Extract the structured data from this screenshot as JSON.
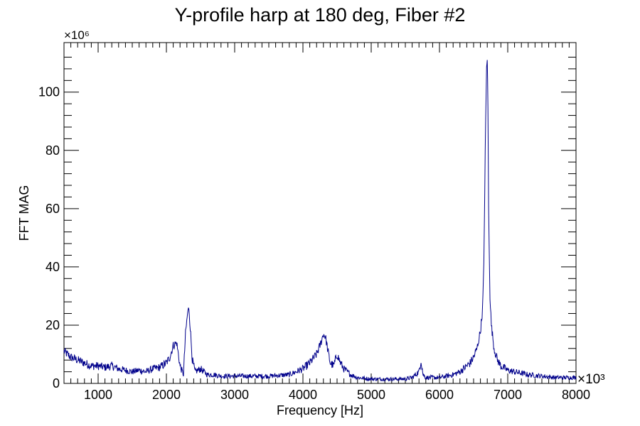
{
  "chart_data": {
    "type": "line",
    "title": "Y-profile harp at 180 deg, Fiber #2",
    "xlabel": "Frequency [Hz]",
    "ylabel": "FFT MAG",
    "x_multiplier_label": "×10³",
    "y_multiplier_label": "×10⁶",
    "xlim": [
      500,
      8000
    ],
    "ylim": [
      0,
      117
    ],
    "x_ticks": [
      1000,
      2000,
      3000,
      4000,
      5000,
      6000,
      7000,
      8000
    ],
    "x_tick_labels": [
      "1000",
      "2000",
      "3000",
      "4000",
      "5000",
      "6000",
      "7000",
      "8000"
    ],
    "y_ticks": [
      0,
      20,
      40,
      60,
      80,
      100
    ],
    "y_tick_labels": [
      "0",
      "20",
      "40",
      "60",
      "80",
      "100"
    ],
    "grid": false,
    "legend": "none",
    "series": [
      {
        "color": "#00008b",
        "x": [
          500,
          600,
          700,
          800,
          900,
          1000,
          1100,
          1200,
          1300,
          1400,
          1500,
          1600,
          1700,
          1800,
          1900,
          2000,
          2050,
          2100,
          2150,
          2200,
          2250,
          2280,
          2310,
          2330,
          2350,
          2380,
          2420,
          2500,
          2600,
          2700,
          2800,
          3000,
          3200,
          3500,
          3800,
          4000,
          4100,
          4200,
          4250,
          4300,
          4330,
          4360,
          4400,
          4450,
          4500,
          4550,
          4600,
          4700,
          4800,
          5000,
          5200,
          5500,
          5600,
          5700,
          5730,
          5760,
          5800,
          6000,
          6200,
          6300,
          6400,
          6450,
          6500,
          6550,
          6600,
          6630,
          6650,
          6670,
          6690,
          6700,
          6710,
          6720,
          6740,
          6760,
          6800,
          6850,
          6900,
          7000,
          7100,
          7200,
          7300,
          7500,
          7700,
          8000
        ],
        "y": [
          11,
          9,
          8,
          7,
          6,
          6,
          5.5,
          6,
          5,
          4.5,
          4,
          4.5,
          4,
          5,
          5.5,
          7,
          9,
          13,
          14,
          6,
          3,
          17,
          24,
          26,
          19,
          8,
          4,
          5,
          3,
          3,
          2.5,
          2.5,
          2.5,
          2.5,
          3,
          5,
          7,
          10,
          13,
          17,
          16,
          12,
          7,
          6,
          10,
          7,
          5,
          3,
          2,
          1.5,
          1.5,
          1.5,
          2,
          4,
          8,
          3,
          2,
          2,
          3,
          4,
          6,
          7,
          9,
          12,
          18,
          25,
          40,
          80,
          108,
          112,
          95,
          60,
          30,
          20,
          12,
          8,
          6,
          4.5,
          4,
          3.5,
          3,
          2.5,
          2,
          2
        ]
      }
    ]
  }
}
